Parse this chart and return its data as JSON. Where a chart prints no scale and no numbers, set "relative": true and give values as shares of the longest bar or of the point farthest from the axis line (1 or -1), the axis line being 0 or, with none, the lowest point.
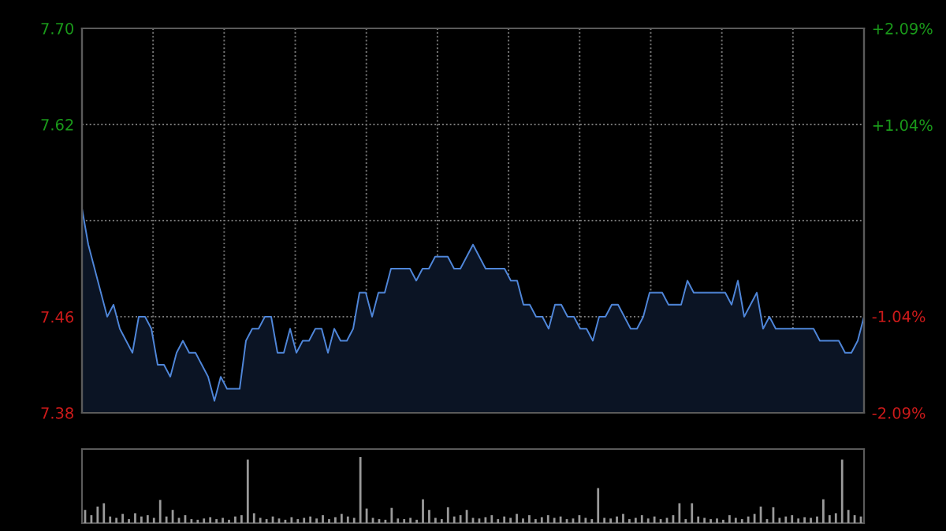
{
  "chart_data": [
    {
      "type": "area",
      "categories": [
        null,
        null,
        null,
        null,
        null,
        null,
        null,
        null,
        null,
        null,
        null,
        null,
        null,
        null,
        null,
        null,
        null,
        null,
        null,
        null,
        null,
        null,
        null,
        null,
        null,
        null,
        null,
        null,
        null,
        null,
        null,
        null,
        null,
        null,
        null,
        null,
        null,
        null,
        null,
        null,
        null,
        null,
        null,
        null,
        null,
        null,
        null,
        null,
        null,
        null,
        null,
        null,
        null,
        null,
        null,
        null,
        null,
        null,
        null,
        null,
        null,
        null,
        null,
        null,
        null,
        null,
        null,
        null,
        null,
        null,
        null,
        null,
        null,
        null,
        null,
        null,
        null,
        null,
        null,
        null,
        null,
        null,
        null,
        null,
        null,
        null,
        null,
        null,
        null,
        null,
        null,
        null,
        null,
        null,
        null,
        null,
        null,
        null,
        null,
        null,
        null,
        null,
        null,
        null,
        null,
        null,
        null,
        null,
        null,
        null,
        null,
        null,
        null,
        null,
        null,
        null,
        null,
        null,
        null,
        null,
        null,
        null,
        null,
        null,
        null
      ],
      "series": [
        {
          "color": "#4f86d9",
          "values": [
            7.55,
            7.52,
            7.5,
            7.48,
            7.46,
            7.47,
            7.45,
            7.44,
            7.43,
            7.46,
            7.46,
            7.45,
            7.42,
            7.42,
            7.41,
            7.43,
            7.44,
            7.43,
            7.43,
            7.42,
            7.41,
            7.39,
            7.41,
            7.4,
            7.4,
            7.4,
            7.44,
            7.45,
            7.45,
            7.46,
            7.46,
            7.43,
            7.43,
            7.45,
            7.43,
            7.44,
            7.44,
            7.45,
            7.45,
            7.43,
            7.45,
            7.44,
            7.44,
            7.45,
            7.48,
            7.48,
            7.46,
            7.48,
            7.48,
            7.5,
            7.5,
            7.5,
            7.5,
            7.49,
            7.5,
            7.5,
            7.51,
            7.51,
            7.51,
            7.5,
            7.5,
            7.51,
            7.52,
            7.51,
            7.5,
            7.5,
            7.5,
            7.5,
            7.49,
            7.49,
            7.47,
            7.47,
            7.46,
            7.46,
            7.45,
            7.47,
            7.47,
            7.46,
            7.46,
            7.45,
            7.45,
            7.44,
            7.46,
            7.46,
            7.47,
            7.47,
            7.46,
            7.45,
            7.45,
            7.46,
            7.48,
            7.48,
            7.48,
            7.47,
            7.47,
            7.47,
            7.49,
            7.48,
            7.48,
            7.48,
            7.48,
            7.48,
            7.48,
            7.47,
            7.49,
            7.46,
            7.47,
            7.48,
            7.45,
            7.46,
            7.45,
            7.45,
            7.45,
            7.45,
            7.45,
            7.45,
            7.45,
            7.44,
            7.44,
            7.44,
            7.44,
            7.43,
            7.43,
            7.44,
            7.46
          ]
        }
      ],
      "ylim": [
        7.38,
        7.7
      ],
      "yticks": [
        {
          "value": 7.38,
          "label": "7.38"
        },
        {
          "value": 7.46,
          "label": "7.46"
        },
        {
          "value": 7.54,
          "label": null
        },
        {
          "value": 7.62,
          "label": "7.62"
        },
        {
          "value": 7.7,
          "label": "7.70"
        }
      ],
      "y2lim": [
        -2.09,
        2.09
      ],
      "y2ticks": [
        {
          "value": -2.09,
          "label": "-2.09%"
        },
        {
          "value": -1.04,
          "label": "-1.04%"
        },
        {
          "value": 1.04,
          "label": "+1.04%"
        },
        {
          "value": 2.09,
          "label": "+2.09%"
        }
      ],
      "grid": true
    },
    {
      "type": "bar",
      "relative": true,
      "categories": [
        null,
        null,
        null,
        null,
        null,
        null,
        null,
        null,
        null,
        null,
        null,
        null,
        null,
        null,
        null,
        null,
        null,
        null,
        null,
        null,
        null,
        null,
        null,
        null,
        null,
        null,
        null,
        null,
        null,
        null,
        null,
        null,
        null,
        null,
        null,
        null,
        null,
        null,
        null,
        null,
        null,
        null,
        null,
        null,
        null,
        null,
        null,
        null,
        null,
        null,
        null,
        null,
        null,
        null,
        null,
        null,
        null,
        null,
        null,
        null,
        null,
        null,
        null,
        null,
        null,
        null,
        null,
        null,
        null,
        null,
        null,
        null,
        null,
        null,
        null,
        null,
        null,
        null,
        null,
        null,
        null,
        null,
        null,
        null,
        null,
        null,
        null,
        null,
        null,
        null,
        null,
        null,
        null,
        null,
        null,
        null,
        null,
        null,
        null,
        null,
        null,
        null,
        null,
        null,
        null,
        null,
        null,
        null,
        null,
        null,
        null,
        null,
        null,
        null,
        null,
        null,
        null,
        null,
        null,
        null,
        null,
        null,
        null,
        null,
        null
      ],
      "series": [
        {
          "color": "#9a9a9a",
          "values": [
            0.2,
            0.12,
            0.25,
            0.3,
            0.1,
            0.08,
            0.14,
            0.06,
            0.15,
            0.1,
            0.12,
            0.08,
            0.35,
            0.1,
            0.2,
            0.08,
            0.12,
            0.06,
            0.05,
            0.07,
            0.09,
            0.06,
            0.08,
            0.05,
            0.1,
            0.12,
            0.96,
            0.15,
            0.08,
            0.06,
            0.1,
            0.07,
            0.05,
            0.09,
            0.06,
            0.08,
            0.1,
            0.07,
            0.12,
            0.06,
            0.09,
            0.14,
            0.1,
            0.08,
            1.0,
            0.22,
            0.08,
            0.06,
            0.05,
            0.23,
            0.07,
            0.06,
            0.08,
            0.05,
            0.36,
            0.2,
            0.08,
            0.06,
            0.24,
            0.1,
            0.12,
            0.2,
            0.08,
            0.07,
            0.09,
            0.12,
            0.06,
            0.1,
            0.08,
            0.14,
            0.07,
            0.12,
            0.06,
            0.09,
            0.12,
            0.08,
            0.1,
            0.06,
            0.07,
            0.12,
            0.08,
            0.06,
            0.53,
            0.08,
            0.07,
            0.1,
            0.14,
            0.06,
            0.08,
            0.12,
            0.07,
            0.1,
            0.06,
            0.08,
            0.12,
            0.3,
            0.06,
            0.3,
            0.1,
            0.08,
            0.06,
            0.07,
            0.05,
            0.12,
            0.08,
            0.06,
            0.1,
            0.14,
            0.25,
            0.06,
            0.24,
            0.08,
            0.1,
            0.12,
            0.07,
            0.09,
            0.08,
            0.1,
            0.36,
            0.12,
            0.15,
            0.96,
            0.2,
            0.12,
            0.1
          ]
        }
      ]
    }
  ]
}
